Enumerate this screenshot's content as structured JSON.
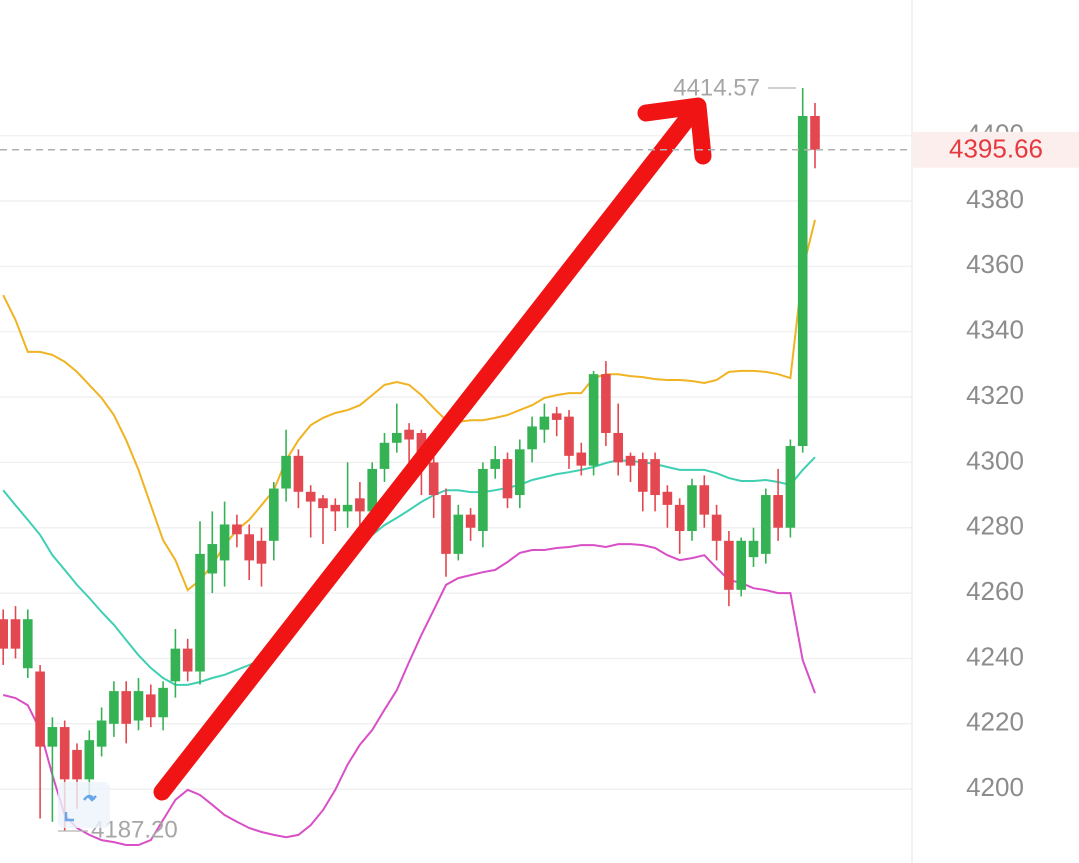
{
  "chart_data": {
    "type": "candlestick",
    "up_color": "#35b254",
    "down_color": "#e3474f",
    "ylim": [
      4177.4,
      4441.5
    ],
    "yticks": [
      4200,
      4220,
      4240,
      4260,
      4280,
      4300,
      4320,
      4340,
      4360,
      4380,
      4400
    ],
    "grid": true,
    "open": [
      4252,
      4252,
      4237,
      4236,
      4213,
      4219,
      4212,
      4203,
      4213,
      4220,
      4230,
      4221,
      4229,
      4222,
      4233,
      4243,
      4236,
      4266,
      4270,
      4281,
      4278,
      4276,
      4276,
      4292,
      4302,
      4291,
      4289,
      4287,
      4285,
      4289,
      4285,
      4298,
      4306,
      4310,
      4309,
      4300,
      4290,
      4272,
      4284,
      4279,
      4298,
      4301,
      4290,
      4304,
      4310,
      4315,
      4314,
      4303,
      4299,
      4327,
      4309,
      4302,
      4301,
      4301,
      4291,
      4287,
      4279,
      4293,
      4284,
      4276,
      4261,
      4271,
      4272,
      4290,
      4280,
      4305,
      4406
    ],
    "high": [
      4255,
      4256,
      4255,
      4238,
      4222,
      4221,
      4214,
      4218,
      4225,
      4233,
      4233,
      4234,
      4232,
      4233,
      4249,
      4246,
      4282,
      4285,
      4288,
      4284,
      4281,
      4280,
      4294,
      4310,
      4304,
      4293,
      4290,
      4289,
      4300,
      4294,
      4300,
      4309,
      4318,
      4312,
      4310,
      4303,
      4292,
      4287,
      4286,
      4300,
      4305,
      4303,
      4307,
      4314,
      4318,
      4317,
      4316,
      4306,
      4328,
      4331,
      4318,
      4303,
      4303,
      4303,
      4293,
      4289,
      4295,
      4296,
      4287,
      4279,
      4277,
      4280,
      4292,
      4298,
      4307,
      4414.57,
      4410
    ],
    "low": [
      4238,
      4240,
      4234,
      4191,
      4190,
      4187.2,
      4194,
      4198,
      4210,
      4216,
      4214,
      4218,
      4219,
      4218,
      4228,
      4233,
      4232,
      4260,
      4262,
      4274,
      4264,
      4262,
      4270,
      4288,
      4286,
      4277,
      4275,
      4279,
      4280,
      4280,
      4282,
      4294,
      4303,
      4300,
      4290,
      4283,
      4265,
      4270,
      4276,
      4274,
      4295,
      4286,
      4286,
      4300,
      4306,
      4308,
      4298,
      4296,
      4296,
      4305,
      4296,
      4294,
      4285,
      4285,
      4280,
      4272,
      4276,
      4280,
      4270,
      4256,
      4259,
      4268,
      4269,
      4276,
      4277,
      4303,
      4390
    ],
    "close": [
      4243,
      4243,
      4252,
      4213,
      4219,
      4203,
      4203,
      4215,
      4221,
      4230,
      4220,
      4230,
      4222,
      4231,
      4243,
      4236,
      4272,
      4275,
      4281,
      4278,
      4270,
      4269,
      4292,
      4302,
      4291,
      4288,
      4286,
      4285,
      4287,
      4285,
      4298,
      4306,
      4309,
      4307,
      4299,
      4290,
      4272,
      4284,
      4280,
      4298,
      4301,
      4289,
      4304,
      4311,
      4314,
      4313,
      4302,
      4299,
      4327,
      4309,
      4300,
      4299,
      4291,
      4290,
      4287,
      4279,
      4293,
      4284,
      4276,
      4261,
      4276,
      4276,
      4290,
      4280,
      4305,
      4406,
      4395.66
    ],
    "lines": [
      {
        "color": "#f0b323",
        "values": [
          4351.2,
          4343.6,
          4333.8,
          4333.8,
          4332.9,
          4330.8,
          4327.7,
          4323.7,
          4319.7,
          4314.5,
          4306.8,
          4297.7,
          4286.9,
          4276.2,
          4270.1,
          4260.9,
          4264.0,
          4268.6,
          4274.7,
          4279.3,
          4282.4,
          4286.9,
          4291.5,
          4300.7,
          4306.8,
          4311.4,
          4313.6,
          4315.1,
          4316.0,
          4317.5,
          4320.6,
          4323.7,
          4324.6,
          4323.7,
          4320.6,
          4316.6,
          4312.9,
          4312.4,
          4312.9,
          4312.9,
          4313.6,
          4314.5,
          4316.0,
          4317.5,
          4319.7,
          4320.6,
          4321.2,
          4321.2,
          4325.8,
          4327.0,
          4327.0,
          4326.4,
          4326.1,
          4325.5,
          4325.2,
          4325.2,
          4324.9,
          4324.3,
          4325.2,
          4327.7,
          4328.0,
          4328.0,
          4327.7,
          4327.0,
          4325.8,
          4358.9,
          4374.2
        ]
      },
      {
        "color": "#3fcfb2",
        "values": [
          4291.5,
          4286.9,
          4282.4,
          4277.8,
          4271.6,
          4267.1,
          4262.5,
          4258.5,
          4254.2,
          4250.3,
          4245.6,
          4241.0,
          4237.1,
          4234.0,
          4231.9,
          4231.9,
          4232.8,
          4234.0,
          4235.0,
          4236.5,
          4238.0,
          4239.6,
          4242.6,
          4247.2,
          4251.8,
          4256.4,
          4260.9,
          4265.5,
          4270.1,
          4274.7,
          4277.8,
          4280.8,
          4283.0,
          4285.4,
          4287.9,
          4290.0,
          4291.5,
          4291.5,
          4290.9,
          4290.9,
          4291.5,
          4292.2,
          4293.1,
          4294.6,
          4295.5,
          4296.4,
          4297.0,
          4297.7,
          4298.6,
          4299.8,
          4300.7,
          4300.4,
          4300.1,
          4299.5,
          4298.6,
          4297.7,
          4297.7,
          4297.7,
          4296.7,
          4295.2,
          4294.3,
          4294.3,
          4294.6,
          4294.0,
          4293.1,
          4297.7,
          4301.6
        ]
      },
      {
        "color": "#d94fc6",
        "values": [
          4228.8,
          4227.9,
          4225.7,
          4218.1,
          4204.3,
          4192.1,
          4188.1,
          4186.0,
          4184.4,
          4183.8,
          4182.9,
          4182.9,
          4184.4,
          4190.6,
          4196.7,
          4199.8,
          4198.2,
          4195.2,
          4192.1,
          4190.0,
          4188.1,
          4186.9,
          4186.0,
          4185.3,
          4186.0,
          4189.0,
          4193.6,
          4199.8,
          4207.5,
          4213.6,
          4218.1,
          4224.3,
          4230.3,
          4238.9,
          4247.2,
          4254.8,
          4262.5,
          4264.6,
          4265.5,
          4266.4,
          4267.1,
          4269.5,
          4272.3,
          4273.2,
          4273.2,
          4273.8,
          4274.1,
          4274.7,
          4274.7,
          4274.1,
          4275.0,
          4275.0,
          4274.7,
          4273.8,
          4271.6,
          4270.1,
          4270.7,
          4271.6,
          4267.7,
          4264.0,
          4263.1,
          4261.5,
          4260.9,
          4260.0,
          4260.0,
          4239.5,
          4229.4
        ]
      }
    ],
    "high_label": 4414.57,
    "low_label": {
      "value": 4187.2,
      "label": "4187.20"
    },
    "last_price": 4395.66,
    "last_price_color": "#e53a3f"
  }
}
